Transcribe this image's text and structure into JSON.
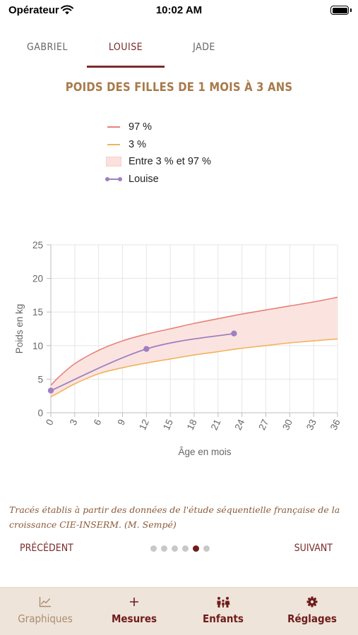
{
  "status": {
    "carrier": "Opérateur",
    "time": "10:02 AM"
  },
  "tabs": [
    "GABRIEL",
    "LOUISE",
    "JADE"
  ],
  "active_tab": 1,
  "title": "POIDS DES FILLES DE 1 MOIS À 3 ANS",
  "legend": [
    {
      "label": "97 %",
      "kind": "line",
      "color": "#e8817a"
    },
    {
      "label": "3 %",
      "kind": "line",
      "color": "#f2b25c"
    },
    {
      "label": "Entre 3 % et 97 %",
      "kind": "area",
      "color": "#fbe1dd"
    },
    {
      "label": "Louise",
      "kind": "series",
      "color": "#9e80c0"
    }
  ],
  "chart_data": {
    "type": "line",
    "title": "POIDS DES FILLES DE 1 MOIS À 3 ANS",
    "xlabel": "Âge en mois",
    "ylabel": "Poids en kg",
    "xlim": [
      0,
      36
    ],
    "ylim": [
      0,
      25
    ],
    "x_ticks": [
      0,
      3,
      6,
      9,
      12,
      15,
      18,
      21,
      24,
      27,
      30,
      33,
      36
    ],
    "y_ticks": [
      0,
      5,
      10,
      15,
      20,
      25
    ],
    "grid": true,
    "series": [
      {
        "name": "97 %",
        "color": "#e8817a",
        "x": [
          0,
          1,
          3,
          6,
          9,
          12,
          15,
          18,
          21,
          24,
          27,
          30,
          33,
          36
        ],
        "y": [
          4.1,
          5.3,
          7.3,
          9.3,
          10.7,
          11.7,
          12.5,
          13.3,
          14.0,
          14.7,
          15.3,
          15.9,
          16.5,
          17.2
        ]
      },
      {
        "name": "3 %",
        "color": "#f2b25c",
        "x": [
          0,
          1,
          3,
          6,
          9,
          12,
          15,
          18,
          21,
          24,
          27,
          30,
          33,
          36
        ],
        "y": [
          2.4,
          3.0,
          4.3,
          5.8,
          6.7,
          7.4,
          8.0,
          8.6,
          9.1,
          9.6,
          10.0,
          10.4,
          10.7,
          11.0
        ]
      },
      {
        "name": "Louise",
        "color": "#9e80c0",
        "x": [
          0,
          12,
          23
        ],
        "y": [
          3.3,
          9.5,
          11.8
        ]
      }
    ],
    "band": {
      "name": "Entre 3 % et 97 %",
      "color": "#fbe1dd",
      "upper": "97 %",
      "lower": "3 %"
    }
  },
  "source_note": "Tracés établis à partir des données de l'étude séquentielle française de la croissance CIE-INSERM. (M. Sempé)",
  "pager": {
    "prev": "PRÉCÉDENT",
    "next": "SUIVANT",
    "count": 6,
    "current": 4
  },
  "tab_bar": [
    {
      "label": "Graphiques",
      "icon": "chart-icon",
      "selected": true
    },
    {
      "label": "Mesures",
      "icon": "plus-icon",
      "selected": false
    },
    {
      "label": "Enfants",
      "icon": "family-icon",
      "selected": false
    },
    {
      "label": "Réglages",
      "icon": "gear-icon",
      "selected": false
    }
  ]
}
